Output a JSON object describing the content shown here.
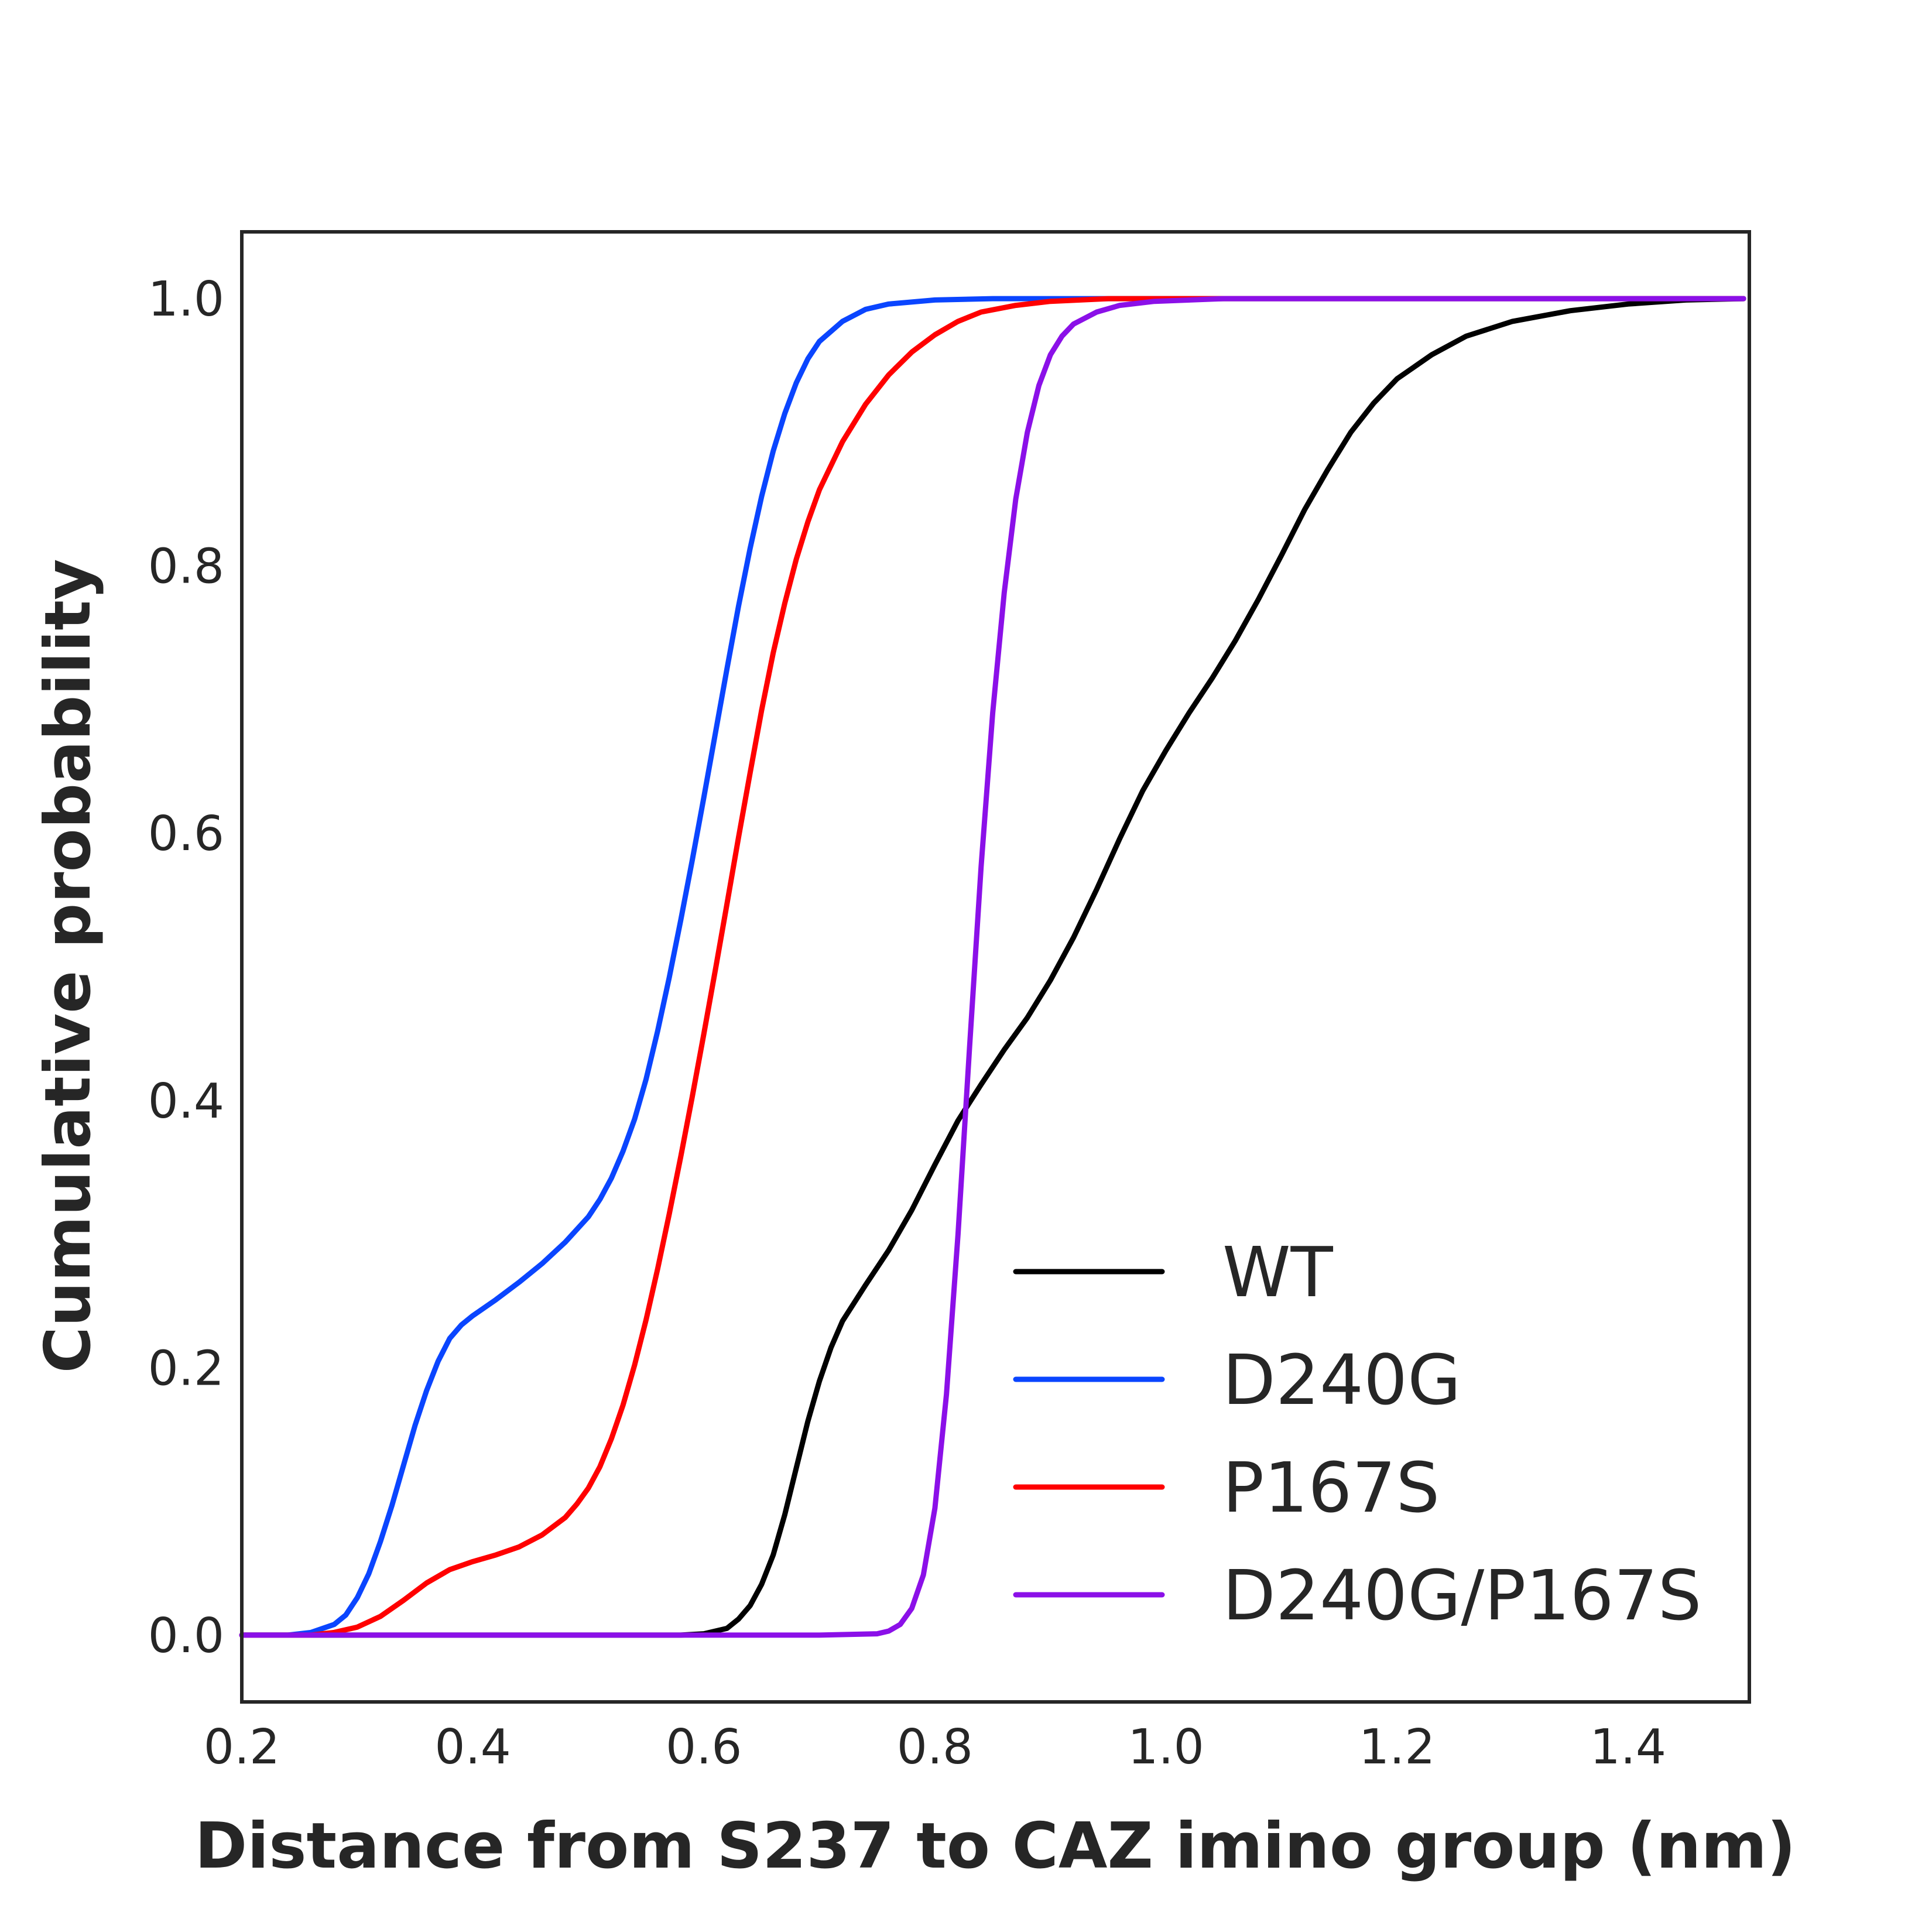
{
  "chart_data": {
    "type": "line",
    "xlabel": "Distance from S237 to CAZ imino group (nm)",
    "ylabel": "Cumulative probability",
    "xlim": [
      0.2,
      1.505
    ],
    "ylim": [
      -0.05,
      1.05
    ],
    "xticks": [
      "0.2",
      "0.4",
      "0.6",
      "0.8",
      "1.0",
      "1.2",
      "1.4"
    ],
    "yticks": [
      "0.0",
      "0.2",
      "0.4",
      "0.6",
      "0.8",
      "1.0"
    ],
    "grid": false,
    "legend_position": "lower-right",
    "series": [
      {
        "name": "WT",
        "color": "#000000",
        "points": [
          [
            0.2,
            0.0
          ],
          [
            0.5,
            0.0
          ],
          [
            0.58,
            0.0
          ],
          [
            0.6,
            0.001
          ],
          [
            0.62,
            0.005
          ],
          [
            0.63,
            0.012
          ],
          [
            0.64,
            0.022
          ],
          [
            0.65,
            0.038
          ],
          [
            0.66,
            0.06
          ],
          [
            0.67,
            0.09
          ],
          [
            0.68,
            0.125
          ],
          [
            0.69,
            0.16
          ],
          [
            0.7,
            0.19
          ],
          [
            0.71,
            0.215
          ],
          [
            0.72,
            0.235
          ],
          [
            0.74,
            0.262
          ],
          [
            0.76,
            0.288
          ],
          [
            0.78,
            0.318
          ],
          [
            0.8,
            0.352
          ],
          [
            0.82,
            0.385
          ],
          [
            0.84,
            0.412
          ],
          [
            0.86,
            0.438
          ],
          [
            0.88,
            0.462
          ],
          [
            0.9,
            0.49
          ],
          [
            0.92,
            0.522
          ],
          [
            0.94,
            0.558
          ],
          [
            0.96,
            0.596
          ],
          [
            0.98,
            0.632
          ],
          [
            1.0,
            0.662
          ],
          [
            1.02,
            0.69
          ],
          [
            1.04,
            0.716
          ],
          [
            1.06,
            0.744
          ],
          [
            1.08,
            0.775
          ],
          [
            1.1,
            0.808
          ],
          [
            1.12,
            0.842
          ],
          [
            1.14,
            0.872
          ],
          [
            1.16,
            0.9
          ],
          [
            1.18,
            0.922
          ],
          [
            1.2,
            0.94
          ],
          [
            1.23,
            0.958
          ],
          [
            1.26,
            0.972
          ],
          [
            1.3,
            0.983
          ],
          [
            1.35,
            0.991
          ],
          [
            1.4,
            0.996
          ],
          [
            1.45,
            0.999
          ],
          [
            1.5,
            1.0
          ]
        ]
      },
      {
        "name": "D240G",
        "color": "#0a45ff",
        "points": [
          [
            0.2,
            0.0
          ],
          [
            0.24,
            0.0
          ],
          [
            0.26,
            0.002
          ],
          [
            0.28,
            0.008
          ],
          [
            0.29,
            0.015
          ],
          [
            0.3,
            0.028
          ],
          [
            0.31,
            0.046
          ],
          [
            0.32,
            0.07
          ],
          [
            0.33,
            0.097
          ],
          [
            0.34,
            0.127
          ],
          [
            0.35,
            0.157
          ],
          [
            0.36,
            0.183
          ],
          [
            0.37,
            0.205
          ],
          [
            0.38,
            0.222
          ],
          [
            0.39,
            0.232
          ],
          [
            0.4,
            0.239
          ],
          [
            0.42,
            0.251
          ],
          [
            0.44,
            0.264
          ],
          [
            0.46,
            0.278
          ],
          [
            0.48,
            0.294
          ],
          [
            0.5,
            0.313
          ],
          [
            0.51,
            0.326
          ],
          [
            0.52,
            0.342
          ],
          [
            0.53,
            0.362
          ],
          [
            0.54,
            0.386
          ],
          [
            0.55,
            0.416
          ],
          [
            0.56,
            0.452
          ],
          [
            0.57,
            0.492
          ],
          [
            0.58,
            0.535
          ],
          [
            0.59,
            0.58
          ],
          [
            0.6,
            0.627
          ],
          [
            0.61,
            0.675
          ],
          [
            0.62,
            0.723
          ],
          [
            0.63,
            0.77
          ],
          [
            0.64,
            0.813
          ],
          [
            0.65,
            0.852
          ],
          [
            0.66,
            0.886
          ],
          [
            0.67,
            0.914
          ],
          [
            0.68,
            0.937
          ],
          [
            0.69,
            0.955
          ],
          [
            0.7,
            0.968
          ],
          [
            0.72,
            0.983
          ],
          [
            0.74,
            0.992
          ],
          [
            0.76,
            0.996
          ],
          [
            0.8,
            0.999
          ],
          [
            0.85,
            1.0
          ],
          [
            1.5,
            1.0
          ]
        ]
      },
      {
        "name": "P167S",
        "color": "#ff0000",
        "points": [
          [
            0.2,
            0.0
          ],
          [
            0.26,
            0.0
          ],
          [
            0.28,
            0.002
          ],
          [
            0.3,
            0.006
          ],
          [
            0.32,
            0.014
          ],
          [
            0.34,
            0.026
          ],
          [
            0.36,
            0.039
          ],
          [
            0.38,
            0.049
          ],
          [
            0.4,
            0.055
          ],
          [
            0.42,
            0.06
          ],
          [
            0.44,
            0.066
          ],
          [
            0.46,
            0.075
          ],
          [
            0.48,
            0.088
          ],
          [
            0.49,
            0.098
          ],
          [
            0.5,
            0.11
          ],
          [
            0.51,
            0.126
          ],
          [
            0.52,
            0.147
          ],
          [
            0.53,
            0.172
          ],
          [
            0.54,
            0.202
          ],
          [
            0.55,
            0.236
          ],
          [
            0.56,
            0.274
          ],
          [
            0.57,
            0.315
          ],
          [
            0.58,
            0.358
          ],
          [
            0.59,
            0.403
          ],
          [
            0.6,
            0.45
          ],
          [
            0.61,
            0.498
          ],
          [
            0.62,
            0.547
          ],
          [
            0.63,
            0.597
          ],
          [
            0.64,
            0.645
          ],
          [
            0.65,
            0.692
          ],
          [
            0.66,
            0.735
          ],
          [
            0.67,
            0.772
          ],
          [
            0.68,
            0.805
          ],
          [
            0.69,
            0.833
          ],
          [
            0.7,
            0.857
          ],
          [
            0.72,
            0.893
          ],
          [
            0.74,
            0.921
          ],
          [
            0.76,
            0.943
          ],
          [
            0.78,
            0.96
          ],
          [
            0.8,
            0.973
          ],
          [
            0.82,
            0.983
          ],
          [
            0.84,
            0.99
          ],
          [
            0.87,
            0.995
          ],
          [
            0.9,
            0.998
          ],
          [
            0.95,
            1.0
          ],
          [
            1.5,
            1.0
          ]
        ]
      },
      {
        "name": "D240G/P167S",
        "color": "#8b10e8",
        "points": [
          [
            0.2,
            0.0
          ],
          [
            0.7,
            0.0
          ],
          [
            0.75,
            0.001
          ],
          [
            0.76,
            0.003
          ],
          [
            0.77,
            0.008
          ],
          [
            0.78,
            0.02
          ],
          [
            0.79,
            0.045
          ],
          [
            0.8,
            0.095
          ],
          [
            0.81,
            0.18
          ],
          [
            0.82,
            0.3
          ],
          [
            0.83,
            0.44
          ],
          [
            0.84,
            0.575
          ],
          [
            0.85,
            0.69
          ],
          [
            0.86,
            0.78
          ],
          [
            0.87,
            0.85
          ],
          [
            0.88,
            0.9
          ],
          [
            0.89,
            0.935
          ],
          [
            0.9,
            0.958
          ],
          [
            0.91,
            0.972
          ],
          [
            0.92,
            0.981
          ],
          [
            0.94,
            0.99
          ],
          [
            0.96,
            0.995
          ],
          [
            0.99,
            0.998
          ],
          [
            1.05,
            1.0
          ],
          [
            1.5,
            1.0
          ]
        ]
      }
    ]
  }
}
